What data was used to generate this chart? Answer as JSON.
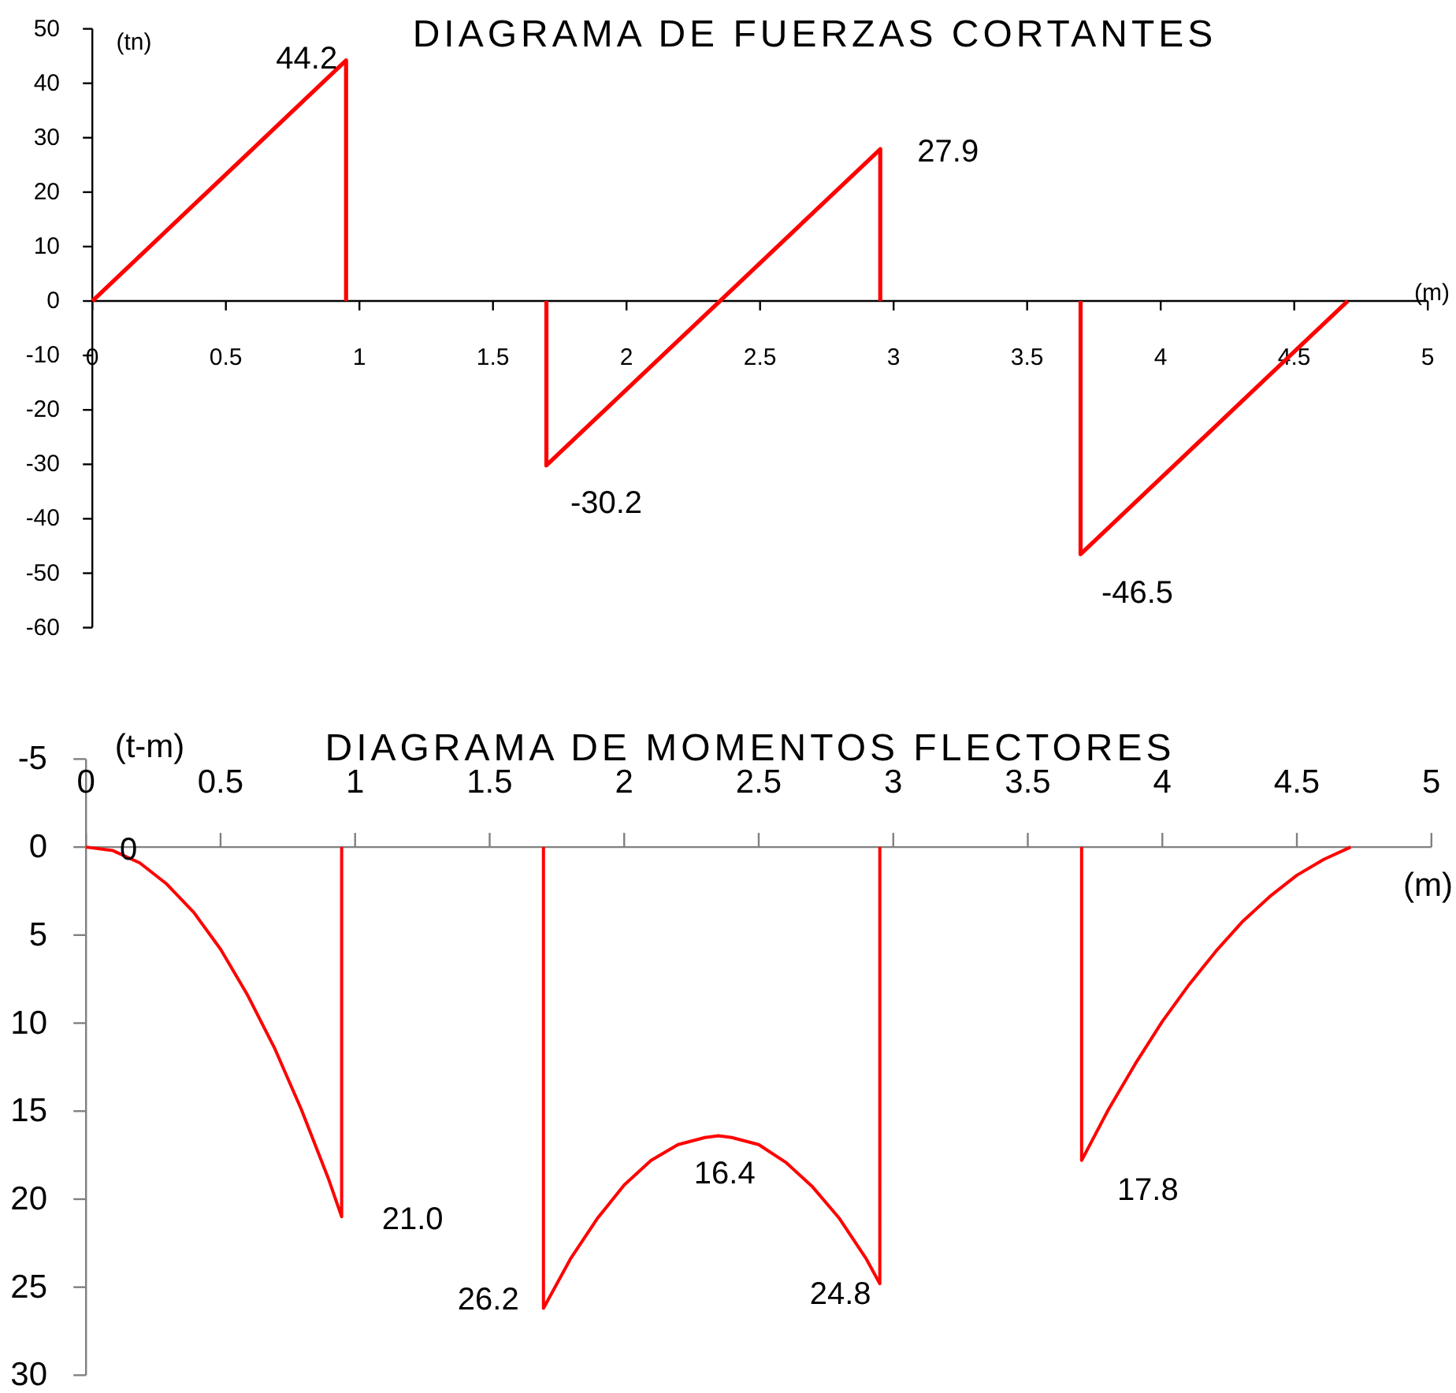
{
  "chart_data": [
    {
      "type": "line",
      "title": "DIAGRAMA DE FUERZAS CORTANTES",
      "xlabel": "(m)",
      "ylabel": "(tn)",
      "xlim": [
        0,
        5
      ],
      "xticks": [
        0,
        0.5,
        1,
        1.5,
        2,
        2.5,
        3,
        3.5,
        4,
        4.5,
        5
      ],
      "ylim": [
        -60,
        50
      ],
      "yticks": [
        -60,
        -50,
        -40,
        -30,
        -20,
        -10,
        0,
        10,
        20,
        30,
        40,
        50
      ],
      "series": [
        {
          "color": "#ff0000",
          "x": [
            0,
            0.95,
            0.95
          ],
          "values": [
            0,
            44.2,
            0
          ],
          "value_labels": [
            null,
            "44.2",
            null
          ]
        },
        {
          "color": "#ff0000",
          "x": [
            1.7,
            1.7,
            2.95,
            2.95
          ],
          "values": [
            0,
            -30.2,
            27.9,
            0
          ],
          "value_labels": [
            null,
            "-30.2",
            "27.9",
            null
          ]
        },
        {
          "color": "#ff0000",
          "x": [
            3.7,
            3.7,
            4.7
          ],
          "values": [
            0,
            -46.5,
            0
          ],
          "value_labels": [
            null,
            "-46.5",
            null
          ]
        }
      ]
    },
    {
      "type": "line",
      "title": "DIAGRAMA DE MOMENTOS FLECTORES",
      "xlabel": "(m)",
      "ylabel": "(t-m)",
      "xlim": [
        0,
        5
      ],
      "xticks": [
        0,
        0.5,
        1,
        1.5,
        2,
        2.5,
        3,
        3.5,
        4,
        4.5,
        5
      ],
      "ylim": [
        30,
        -5
      ],
      "yticks": [
        -5,
        0,
        5,
        10,
        15,
        20,
        25,
        30
      ],
      "series": [
        {
          "color": "#ff0000",
          "x": [
            0,
            0.1,
            0.2,
            0.3,
            0.4,
            0.5,
            0.6,
            0.7,
            0.8,
            0.9,
            0.95,
            0.95
          ],
          "values": [
            0,
            0.2,
            0.9,
            2.1,
            3.7,
            5.8,
            8.4,
            11.4,
            14.9,
            18.8,
            21.0,
            0
          ],
          "value_labels": [
            "0",
            null,
            null,
            null,
            null,
            null,
            null,
            null,
            null,
            null,
            "21.0",
            null
          ]
        },
        {
          "color": "#ff0000",
          "x": [
            1.7,
            1.7,
            1.8,
            1.9,
            2.0,
            2.1,
            2.2,
            2.3,
            2.35,
            2.4,
            2.5,
            2.6,
            2.7,
            2.8,
            2.9,
            2.95,
            2.95
          ],
          "values": [
            0,
            26.2,
            23.4,
            21.1,
            19.2,
            17.8,
            16.9,
            16.5,
            16.4,
            16.5,
            16.9,
            17.9,
            19.3,
            21.1,
            23.4,
            24.8,
            0
          ],
          "value_labels": [
            null,
            "26.2",
            null,
            null,
            null,
            null,
            null,
            null,
            "16.4",
            null,
            null,
            null,
            null,
            null,
            null,
            "24.8",
            null
          ]
        },
        {
          "color": "#ff0000",
          "x": [
            3.7,
            3.7,
            3.8,
            3.9,
            4.0,
            4.1,
            4.2,
            4.3,
            4.4,
            4.5,
            4.6,
            4.7
          ],
          "values": [
            0,
            17.8,
            14.9,
            12.3,
            9.9,
            7.8,
            5.9,
            4.2,
            2.8,
            1.6,
            0.7,
            0
          ],
          "value_labels": [
            null,
            "17.8",
            null,
            null,
            null,
            null,
            null,
            null,
            null,
            null,
            null,
            null
          ]
        }
      ]
    }
  ]
}
